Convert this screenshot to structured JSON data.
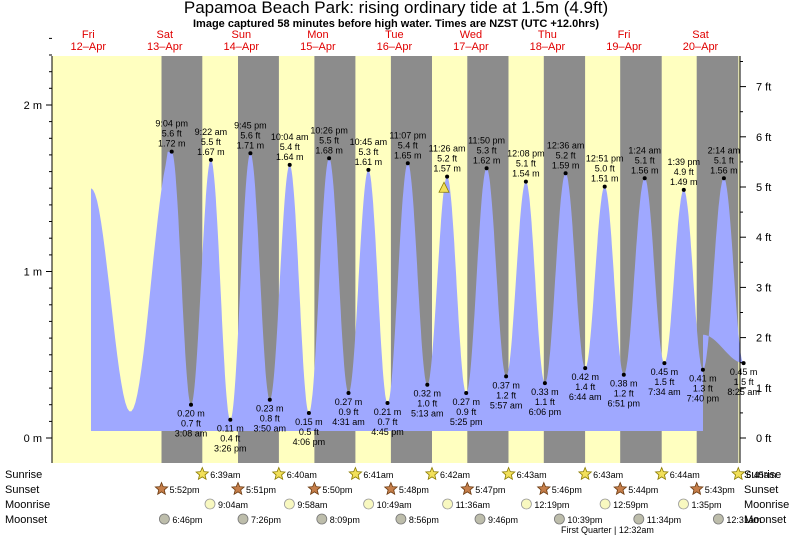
{
  "header": {
    "title": "Papamoa Beach Park: rising  ordinary tide at 1.5m (4.9ft)",
    "subtitle": "Image captured 58 minutes before high water. Times are NZST (UTC +12.0hrs)"
  },
  "colors": {
    "day": "#ffffc0",
    "night": "#8c8c8c",
    "tide": "#9fa8ff",
    "sunrise_star": "#f2e05a",
    "sunset_star": "#c57e4a",
    "moonrise": "#f8f8c0",
    "moonset": "#bdbdab"
  },
  "chart_data": {
    "type": "area",
    "y_left_ticks": [
      {
        "m": 0,
        "label": "0 m"
      },
      {
        "m": 1,
        "label": "1 m"
      },
      {
        "m": 2,
        "label": "2 m"
      }
    ],
    "y_right_ticks": [
      {
        "ft": 0,
        "label": "0 ft"
      },
      {
        "ft": 1,
        "label": "1 ft"
      },
      {
        "ft": 2,
        "label": "2 ft"
      },
      {
        "ft": 3,
        "label": "3 ft"
      },
      {
        "ft": 4,
        "label": "4 ft"
      },
      {
        "ft": 5,
        "label": "5 ft"
      },
      {
        "ft": 6,
        "label": "6 ft"
      },
      {
        "ft": 7,
        "label": "7 ft"
      }
    ],
    "days": [
      {
        "dow": "Fri",
        "date": "12–Apr"
      },
      {
        "dow": "Sat",
        "date": "13–Apr"
      },
      {
        "dow": "Sun",
        "date": "14–Apr"
      },
      {
        "dow": "Mon",
        "date": "15–Apr"
      },
      {
        "dow": "Tue",
        "date": "16–Apr"
      },
      {
        "dow": "Wed",
        "date": "17–Apr"
      },
      {
        "dow": "Thu",
        "date": "18–Apr"
      },
      {
        "dow": "Fri",
        "date": "19–Apr"
      },
      {
        "dow": "Sat",
        "date": "20–Apr"
      }
    ],
    "tides": [
      {
        "type": "high",
        "day": 0,
        "time": "9:04 pm",
        "ft": "5.6 ft",
        "m": 1.72,
        "m_label": "1.72 m"
      },
      {
        "type": "low",
        "day": 1,
        "time": "3:08 am",
        "ft": "0.7 ft",
        "m": 0.2,
        "m_label": "0.20 m"
      },
      {
        "type": "high",
        "day": 1,
        "time": "9:22 am",
        "ft": "5.5 ft",
        "m": 1.67,
        "m_label": "1.67 m"
      },
      {
        "type": "low",
        "day": 1,
        "time": "3:26 pm",
        "ft": "0.4 ft",
        "m": 0.11,
        "m_label": "0.11 m"
      },
      {
        "type": "high",
        "day": 1,
        "time": "9:45 pm",
        "ft": "5.6 ft",
        "m": 1.71,
        "m_label": "1.71 m"
      },
      {
        "type": "low",
        "day": 2,
        "time": "3:50 am",
        "ft": "0.8 ft",
        "m": 0.23,
        "m_label": "0.23 m"
      },
      {
        "type": "high",
        "day": 2,
        "time": "10:04 am",
        "ft": "5.4 ft",
        "m": 1.64,
        "m_label": "1.64 m"
      },
      {
        "type": "low",
        "day": 2,
        "time": "4:06 pm",
        "ft": "0.5 ft",
        "m": 0.15,
        "m_label": "0.15 m"
      },
      {
        "type": "high",
        "day": 2,
        "time": "10:26 pm",
        "ft": "5.5 ft",
        "m": 1.68,
        "m_label": "1.68 m"
      },
      {
        "type": "low",
        "day": 3,
        "time": "4:31 am",
        "ft": "0.9 ft",
        "m": 0.27,
        "m_label": "0.27 m"
      },
      {
        "type": "high",
        "day": 3,
        "time": "10:45 am",
        "ft": "5.3 ft",
        "m": 1.61,
        "m_label": "1.61 m"
      },
      {
        "type": "low",
        "day": 3,
        "time": "4:45 pm",
        "ft": "0.7 ft",
        "m": 0.21,
        "m_label": "0.21 m"
      },
      {
        "type": "high",
        "day": 3,
        "time": "11:07 pm",
        "ft": "5.4 ft",
        "m": 1.65,
        "m_label": "1.65 m"
      },
      {
        "type": "low",
        "day": 4,
        "time": "5:13 am",
        "ft": "1.0 ft",
        "m": 0.32,
        "m_label": "0.32 m"
      },
      {
        "type": "high",
        "day": 4,
        "time": "11:26 am",
        "ft": "5.2 ft",
        "m": 1.57,
        "m_label": "1.57 m"
      },
      {
        "type": "low",
        "day": 4,
        "time": "5:25 pm",
        "ft": "0.9 ft",
        "m": 0.27,
        "m_label": "0.27 m"
      },
      {
        "type": "high",
        "day": 4,
        "time": "11:50 pm",
        "ft": "5.3 ft",
        "m": 1.62,
        "m_label": "1.62 m"
      },
      {
        "type": "low",
        "day": 5,
        "time": "5:57 am",
        "ft": "1.2 ft",
        "m": 0.37,
        "m_label": "0.37 m"
      },
      {
        "type": "high",
        "day": 5,
        "time": "12:08 pm",
        "ft": "5.1 ft",
        "m": 1.54,
        "m_label": "1.54 m"
      },
      {
        "type": "low",
        "day": 5,
        "time": "6:06 pm",
        "ft": "1.1 ft",
        "m": 0.33,
        "m_label": "0.33 m"
      },
      {
        "type": "high",
        "day": 6,
        "time": "12:36 am",
        "ft": "5.2 ft",
        "m": 1.59,
        "m_label": "1.59 m"
      },
      {
        "type": "low",
        "day": 6,
        "time": "6:44 am",
        "ft": "1.4 ft",
        "m": 0.42,
        "m_label": "0.42 m"
      },
      {
        "type": "high",
        "day": 6,
        "time": "12:51 pm",
        "ft": "5.0 ft",
        "m": 1.51,
        "m_label": "1.51 m"
      },
      {
        "type": "low",
        "day": 6,
        "time": "6:51 pm",
        "ft": "1.2 ft",
        "m": 0.38,
        "m_label": "0.38 m"
      },
      {
        "type": "high",
        "day": 7,
        "time": "1:24 am",
        "ft": "5.1 ft",
        "m": 1.56,
        "m_label": "1.56 m"
      },
      {
        "type": "low",
        "day": 7,
        "time": "7:34 am",
        "ft": "1.5 ft",
        "m": 0.45,
        "m_label": "0.45 m"
      },
      {
        "type": "high",
        "day": 7,
        "time": "1:39 pm",
        "ft": "4.9 ft",
        "m": 1.49,
        "m_label": "1.49 m"
      },
      {
        "type": "low",
        "day": 7,
        "time": "7:40 pm",
        "ft": "1.3 ft",
        "m": 0.41,
        "m_label": "0.41 m"
      },
      {
        "type": "high",
        "day": 8,
        "time": "2:14 am",
        "ft": "5.1 ft",
        "m": 1.56,
        "m_label": "1.56 m"
      },
      {
        "type": "low",
        "day": 8,
        "time": "8:25 am",
        "ft": "1.5 ft",
        "m": 0.45,
        "m_label": "0.45 m"
      }
    ],
    "current": {
      "day": 4,
      "time": "10:28 am",
      "m": 1.5
    }
  },
  "almanac": {
    "labels": {
      "sunrise": "Sunrise",
      "sunset": "Sunset",
      "moonrise": "Moonrise",
      "moonset": "Moonset"
    },
    "sunrise": [
      {
        "day": 1,
        "time": "6:39am"
      },
      {
        "day": 2,
        "time": "6:40am"
      },
      {
        "day": 3,
        "time": "6:41am"
      },
      {
        "day": 4,
        "time": "6:42am"
      },
      {
        "day": 5,
        "time": "6:43am"
      },
      {
        "day": 6,
        "time": "6:43am"
      },
      {
        "day": 7,
        "time": "6:44am"
      },
      {
        "day": 8,
        "time": "6:45am"
      }
    ],
    "sunset": [
      {
        "day": 0,
        "time": "5:52pm"
      },
      {
        "day": 1,
        "time": "5:51pm"
      },
      {
        "day": 2,
        "time": "5:50pm"
      },
      {
        "day": 3,
        "time": "5:48pm"
      },
      {
        "day": 4,
        "time": "5:47pm"
      },
      {
        "day": 5,
        "time": "5:46pm"
      },
      {
        "day": 6,
        "time": "5:44pm"
      },
      {
        "day": 7,
        "time": "5:43pm"
      }
    ],
    "moonrise": [
      {
        "day": 1,
        "time": "9:04am"
      },
      {
        "day": 2,
        "time": "9:58am"
      },
      {
        "day": 3,
        "time": "10:49am"
      },
      {
        "day": 4,
        "time": "11:36am"
      },
      {
        "day": 5,
        "time": "12:19pm"
      },
      {
        "day": 6,
        "time": "12:59pm"
      },
      {
        "day": 7,
        "time": "1:35pm"
      }
    ],
    "moonset": [
      {
        "day": 0,
        "time": "6:46pm"
      },
      {
        "day": 1,
        "time": "7:26pm"
      },
      {
        "day": 2,
        "time": "8:09pm"
      },
      {
        "day": 3,
        "time": "8:56pm"
      },
      {
        "day": 4,
        "time": "9:46pm"
      },
      {
        "day": 5,
        "time": "10:39pm"
      },
      {
        "day": 6,
        "time": "11:34pm"
      },
      {
        "day": 8,
        "time": "12:31am"
      }
    ],
    "moon_phase": {
      "text": "First Quarter | 12:32am",
      "day": 7,
      "time": "12:32am"
    }
  }
}
